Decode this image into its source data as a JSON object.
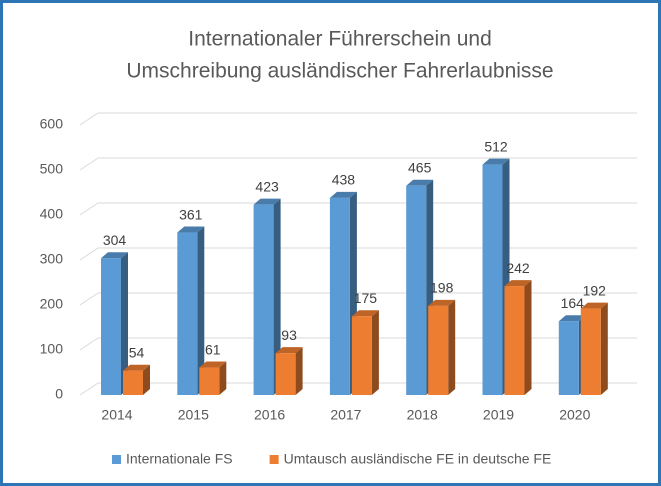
{
  "chart_data": {
    "type": "bar3d",
    "title": [
      "Internationaler Führerschein und",
      "Umschreibung ausländischer Fahrerlaubnisse"
    ],
    "categories": [
      "2014",
      "2015",
      "2016",
      "2017",
      "2018",
      "2019",
      "2020"
    ],
    "series": [
      {
        "name": "Internationale FS",
        "color": "#5b9bd5",
        "values": [
          304,
          361,
          423,
          438,
          465,
          512,
          164
        ]
      },
      {
        "name": "Umtausch ausländische FE in deutsche FE",
        "color": "#ed7d31",
        "values": [
          54,
          61,
          93,
          175,
          198,
          242,
          192
        ]
      }
    ],
    "ylim": [
      0,
      600
    ],
    "yticks": [
      0,
      100,
      200,
      300,
      400,
      500,
      600
    ],
    "grid": true,
    "legend": "bottom"
  }
}
